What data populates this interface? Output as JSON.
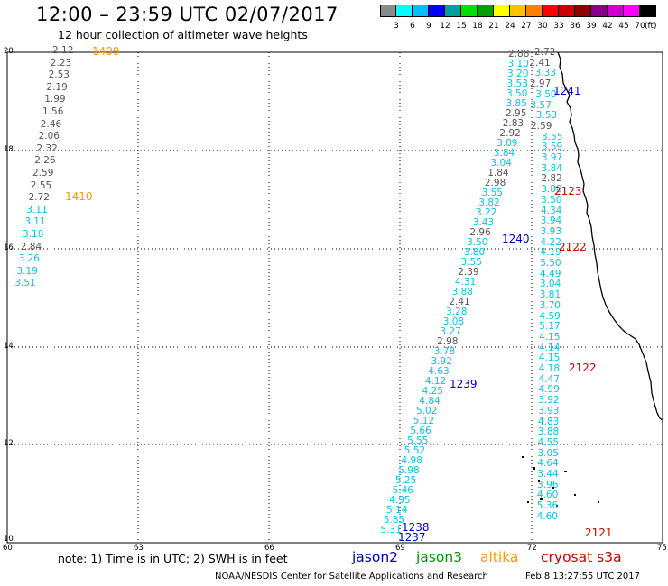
{
  "title": "12:00 – 23:59 UTC 02/07/2017",
  "subtitle": "12 hour collection of altimeter wave heights",
  "colorbar": {
    "colors": [
      "#8a8a8a",
      "#00ffff",
      "#00c0ff",
      "#0000ff",
      "#00a0a0",
      "#00e000",
      "#00a000",
      "#ffff00",
      "#ffc000",
      "#ff8000",
      "#ff0000",
      "#c80000",
      "#900000",
      "#8b008b",
      "#d000d0",
      "#ff00ff",
      "#000000"
    ],
    "labels": [
      "3",
      "6",
      "9",
      "12",
      "15",
      "18",
      "21",
      "24",
      "27",
      "30",
      "33",
      "36",
      "39",
      "42",
      "45",
      "70"
    ],
    "unit": "(ft)"
  },
  "axes": {
    "lat_labels": [
      "20",
      "18",
      "16",
      "14",
      "12",
      "10"
    ],
    "lon_labels": [
      "60",
      "63",
      "66",
      "69",
      "72",
      "75"
    ]
  },
  "passes": [
    {
      "id": "1409",
      "color": "#ff9900"
    },
    {
      "id": "1410",
      "color": "#ff9900"
    },
    {
      "id": "1241",
      "color": "#0000cc"
    },
    {
      "id": "2123",
      "color": "#dd0000"
    },
    {
      "id": "1240",
      "color": "#0000cc"
    },
    {
      "id": "2122",
      "color": "#dd0000"
    },
    {
      "id": "2122",
      "color": "#dd0000"
    },
    {
      "id": "1239",
      "color": "#0000cc"
    },
    {
      "id": "1238",
      "color": "#0000cc"
    },
    {
      "id": "1237",
      "color": "#0000cc"
    },
    {
      "id": "2121",
      "color": "#dd0000"
    }
  ],
  "tracks": {
    "track_1409": [
      "2.12",
      "2.23",
      "2.53",
      "2.19",
      "1.99",
      "1.56",
      "2.46",
      "2.06",
      "2.32",
      "2.26",
      "2.59",
      "2.55",
      "2.72",
      "3.11",
      "3.11",
      "3.18",
      "2.84",
      "3.26",
      "3.19",
      "3.51"
    ],
    "track_1241_1240": [
      "2.88",
      "3.10",
      "3.20",
      "3.53",
      "3.50",
      "3.85",
      "2.95",
      "2.83",
      "2.92",
      "3.09",
      "3.84",
      "3.04",
      "1.84",
      "2.98",
      "3.55",
      "3.82",
      "3.22",
      "3.43",
      "2.96",
      "3.50",
      "3.80",
      "3.55",
      "2.39",
      "4.31",
      "3.88",
      "2.41",
      "3.28",
      "3.08",
      "3.27",
      "2.98",
      "3.78",
      "3.92",
      "4.63",
      "4.12",
      "4.25",
      "4.84",
      "5.02",
      "5.12",
      "5.66",
      "5.55",
      "5.52",
      "4.98",
      "5.98",
      "5.25",
      "5.46",
      "4.95",
      "5.14",
      "5.85",
      "5.31"
    ],
    "track_2123_2121": [
      "2.72",
      "2.41",
      "3.33",
      "2.97",
      "3.50",
      "3.57",
      "3.53",
      "2.59",
      "3.55",
      "3.59",
      "3.97",
      "3.84",
      "2.82",
      "3.88",
      "3.50",
      "4.34",
      "3.94",
      "3.93",
      "4.22",
      "4.19",
      "5.50",
      "4.49",
      "3.04",
      "3.81",
      "3.70",
      "4.59",
      "5.17",
      "4.15",
      "4.14",
      "4.15",
      "4.18",
      "4.47",
      "4.99",
      "3.92",
      "3.93",
      "4.83",
      "3.88",
      "4.55",
      "3.05",
      "4.64",
      "3.44",
      "3.96",
      "4.60",
      "5.36",
      "4.60"
    ]
  },
  "note": "note: 1) Time is in UTC; 2) SWH is in feet",
  "legend": [
    {
      "label": "jason2",
      "color": "#0000cc"
    },
    {
      "label": "jason3",
      "color": "#009900"
    },
    {
      "label": "altika",
      "color": "#ff9900"
    },
    {
      "label": "cryosat s3a",
      "color": "#cc0000"
    }
  ],
  "credit": "NOAA/NESDIS Center for Satellite Applications and Research",
  "timestamp": "Feb  8 13:27:55 UTC 2017"
}
